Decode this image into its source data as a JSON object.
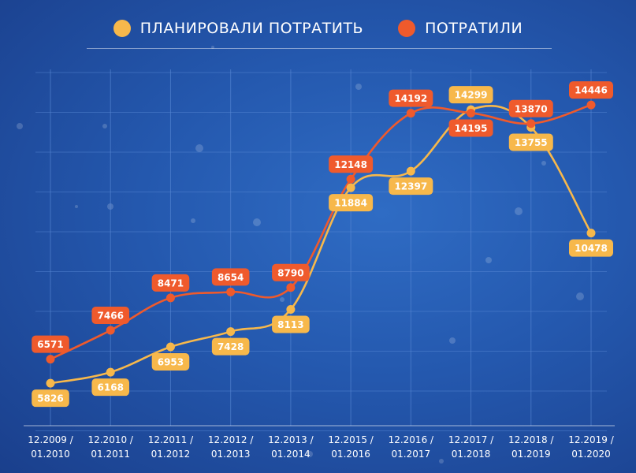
{
  "chart_data": {
    "type": "line",
    "categories": [
      [
        "12.2009 /",
        "01.2010"
      ],
      [
        "12.2010 /",
        "01.2011"
      ],
      [
        "12.2011 /",
        "01.2012"
      ],
      [
        "12.2012 /",
        "01.2013"
      ],
      [
        "12.2013 /",
        "01.2014"
      ],
      [
        "12.2015 /",
        "01.2016"
      ],
      [
        "12.2016 /",
        "01.2017"
      ],
      [
        "12.2017 /",
        "01.2018"
      ],
      [
        "12.2018 /",
        "01.2019"
      ],
      [
        "12.2019 /",
        "01.2020"
      ]
    ],
    "series": [
      {
        "name": "ПЛАНИРОВАЛИ ПОТРАТИТЬ",
        "color": "#f7b84b",
        "values": [
          5826,
          6168,
          6953,
          7428,
          8113,
          11884,
          12397,
          14299,
          13755,
          10478
        ],
        "labels": [
          "5826",
          "6168",
          "6953",
          "7428",
          "8113",
          "11884",
          "12397",
          "14299",
          "13755",
          "10478"
        ],
        "label_side": [
          "below",
          "below",
          "below",
          "below",
          "below",
          "below",
          "below",
          "above",
          "below",
          "below"
        ]
      },
      {
        "name": "ПОТРАТИЛИ",
        "color": "#ef5a2c",
        "values": [
          6571,
          7466,
          8471,
          8654,
          8790,
          12148,
          14192,
          14195,
          13870,
          14446
        ],
        "labels": [
          "6571",
          "7466",
          "8471",
          "8654",
          "8790",
          "12148",
          "14192",
          "14195",
          "13870",
          "14446"
        ],
        "label_side": [
          "above",
          "above",
          "above",
          "above",
          "above",
          "above",
          "above",
          "below",
          "above",
          "above"
        ]
      }
    ],
    "ylim": [
      5000,
      15500
    ],
    "grid": true,
    "legend_position": "top-center",
    "background_color": "#2458ae",
    "grid_color": "#5a8ad6"
  }
}
